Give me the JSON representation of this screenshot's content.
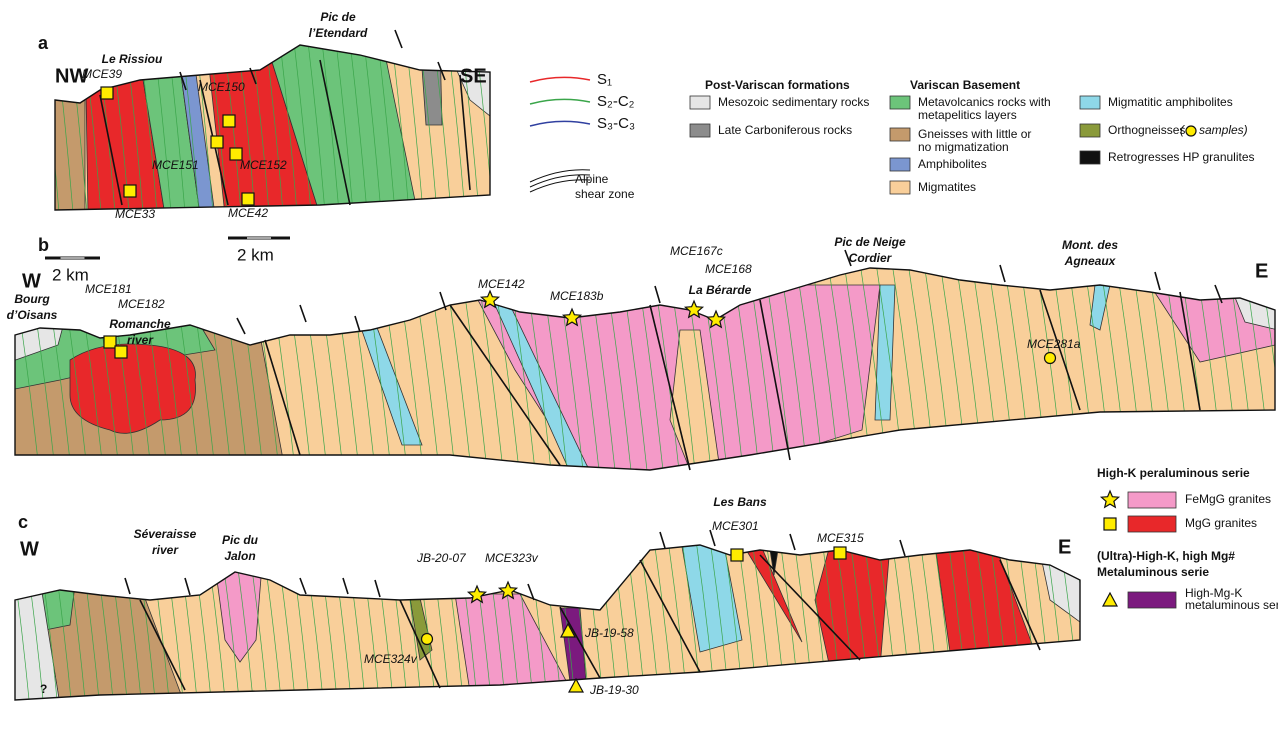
{
  "panels": [
    {
      "label": "a",
      "west": "NW",
      "east": "SE",
      "scale": "2 km",
      "places": [
        [
          "Le Rissiou"
        ],
        [
          "Pic de",
          "l’Etendard"
        ]
      ],
      "samples": [
        "MCE39",
        "MCE150",
        "MCE151",
        "MCE152",
        "MCE33",
        "MCE42"
      ]
    },
    {
      "label": "b",
      "west": "W",
      "east": "E",
      "scale": "2 km",
      "places": [
        [
          "Bourg",
          "d’Oisans"
        ],
        [
          "Romanche",
          "river"
        ],
        [
          "La Bérarde"
        ],
        [
          "Pic de Neige",
          "Cordier"
        ],
        [
          "Mont. des",
          "Agneaux"
        ]
      ],
      "samples": [
        "MCE181",
        "MCE182",
        "MCE142",
        "MCE183b",
        "MCE167c",
        "MCE168",
        "MCE281a"
      ]
    },
    {
      "label": "c",
      "west": "W",
      "east": "E",
      "unknown": "?",
      "places": [
        [
          "Séveraisse",
          "river"
        ],
        [
          "Pic du",
          "Jalon"
        ],
        [
          "Les Bans"
        ]
      ],
      "samples": [
        "JB-20-07",
        "MCE323v",
        "MCE324v",
        "JB-19-58",
        "JB-19-30",
        "MCE301",
        "MCE315"
      ]
    }
  ],
  "legend": {
    "structures": {
      "items": [
        "S₁",
        "S₂-C₂",
        "S₃-C₃"
      ],
      "shear": [
        "Alpine",
        "shear zone"
      ]
    },
    "post_variscan": {
      "title": "Post-Variscan formations",
      "items": [
        [
          "Mesozoic sedimentary rocks"
        ],
        [
          "Late Carboniferous rocks"
        ]
      ]
    },
    "basement": {
      "title": "Variscan Basement",
      "items": [
        [
          "Metavolcanics rocks with",
          "metapelitics layers"
        ],
        [
          "Gneisses with little or",
          "no migmatization"
        ],
        [
          "Amphibolites"
        ],
        [
          "Migmatites"
        ],
        [
          "Migmatitic amphibolites"
        ],
        [
          "Orthogneisses"
        ],
        [
          "Retrogresses HP granulites"
        ]
      ],
      "samples_open": "(",
      "samples_note": "samples)"
    },
    "series": [
      {
        "title": [
          "High-K peraluminous serie"
        ],
        "items": [
          [
            "FeMgG granites"
          ],
          [
            "MgG granites"
          ]
        ]
      },
      {
        "title": [
          "(Ultra)-High-K, high Mg#",
          "Metaluminous serie"
        ],
        "items": [
          [
            "High-Mg-K",
            "metaluminous series"
          ]
        ]
      }
    ]
  }
}
